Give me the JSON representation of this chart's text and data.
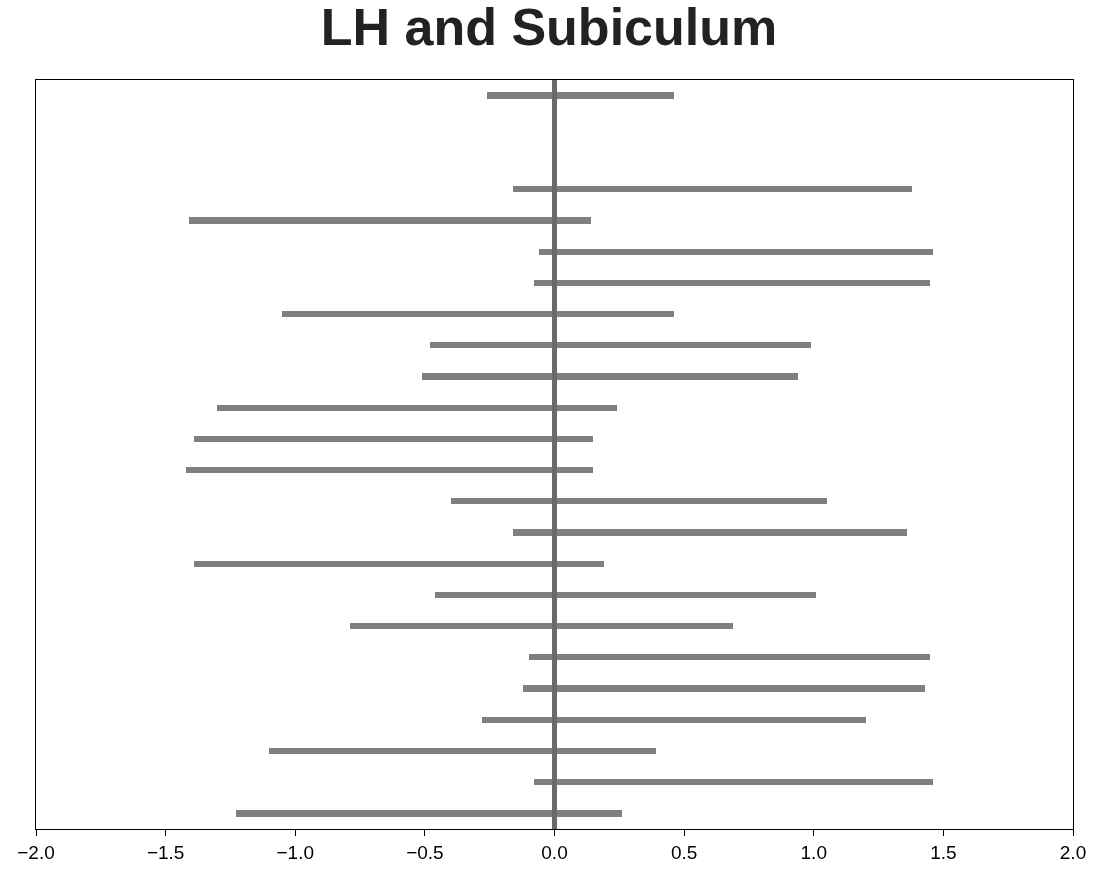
{
  "chart_data": {
    "type": "bar",
    "title": "LH and Subiculum",
    "orientation": "horizontal",
    "categories": [
      null,
      null,
      null,
      null,
      null,
      null,
      null,
      null,
      null,
      null,
      null,
      null,
      null,
      null,
      null,
      null,
      null,
      null,
      null,
      null,
      null,
      null,
      null,
      null
    ],
    "base": [
      -0.26,
      null,
      null,
      -0.16,
      -1.41,
      -0.06,
      -0.08,
      -1.05,
      -0.48,
      -0.51,
      -1.3,
      -1.39,
      -1.42,
      -0.4,
      -0.16,
      -1.39,
      -0.46,
      -0.79,
      -0.1,
      -0.12,
      -0.28,
      -1.1,
      -0.08,
      -1.23
    ],
    "values": [
      0.72,
      null,
      null,
      1.54,
      1.55,
      1.52,
      1.53,
      1.51,
      1.47,
      1.45,
      1.54,
      1.54,
      1.57,
      1.45,
      1.52,
      1.58,
      1.47,
      1.48,
      1.55,
      1.55,
      1.48,
      1.49,
      1.54,
      1.49
    ],
    "color": "#7f7f7f",
    "xlim": [
      -2.0,
      2.0
    ],
    "xticks": [
      {
        "value": -2.0,
        "label": "−2.0"
      },
      {
        "value": -1.5,
        "label": "−1.5"
      },
      {
        "value": -1.0,
        "label": "−1.0"
      },
      {
        "value": -0.5,
        "label": "−0.5"
      },
      {
        "value": 0.0,
        "label": "0.0"
      },
      {
        "value": 0.5,
        "label": "0.5"
      },
      {
        "value": 1.0,
        "label": "1.0"
      },
      {
        "value": 1.5,
        "label": "1.5"
      },
      {
        "value": 2.0,
        "label": "2.0"
      }
    ],
    "ref_lines": [
      {
        "axis": "x",
        "value": 0,
        "color": "#6a6a6a"
      }
    ],
    "tick_labels": "x"
  }
}
